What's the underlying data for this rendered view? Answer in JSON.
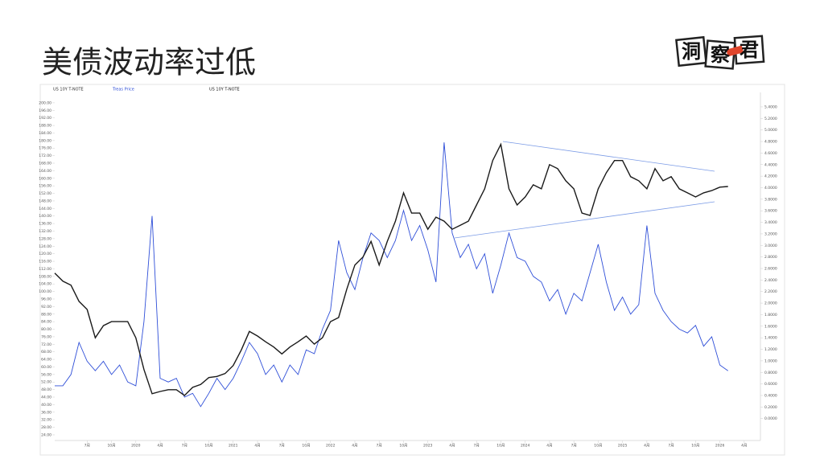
{
  "chart_data": {
    "type": "line",
    "title": "美债波动率过低",
    "subtitle": "US 10Y T-NOTE",
    "x": [
      "2019-03",
      "2019-04",
      "2019-05",
      "2019-06",
      "2019-07",
      "2019-08",
      "2019-09",
      "2019-10",
      "2019-11",
      "2019-12",
      "2020-01",
      "2020-02",
      "2020-03",
      "2020-04",
      "2020-05",
      "2020-06",
      "2020-07",
      "2020-08",
      "2020-09",
      "2020-10",
      "2020-11",
      "2020-12",
      "2021-01",
      "2021-02",
      "2021-03",
      "2021-04",
      "2021-05",
      "2021-06",
      "2021-07",
      "2021-08",
      "2021-09",
      "2021-10",
      "2021-11",
      "2021-12",
      "2022-01",
      "2022-02",
      "2022-03",
      "2022-04",
      "2022-05",
      "2022-06",
      "2022-07",
      "2022-08",
      "2022-09",
      "2022-10",
      "2022-11",
      "2022-12",
      "2023-01",
      "2023-02",
      "2023-03",
      "2023-04",
      "2023-05",
      "2023-06",
      "2023-07",
      "2023-08",
      "2023-09",
      "2023-10",
      "2023-11",
      "2023-12",
      "2024-01",
      "2024-02",
      "2024-03",
      "2024-04",
      "2024-05",
      "2024-06",
      "2024-07",
      "2024-08",
      "2024-09",
      "2024-10",
      "2024-11",
      "2024-12",
      "2025-01",
      "2025-02",
      "2025-03",
      "2025-04",
      "2025-05",
      "2025-06",
      "2025-07",
      "2025-08",
      "2025-09",
      "2025-10",
      "2025-11",
      "2025-12",
      "2026-01",
      "2026-02"
    ],
    "xlim": [
      "2019-03",
      "2026-06"
    ],
    "xticks": [
      {
        "value": "2019-07",
        "label": "7月"
      },
      {
        "value": "2019-10",
        "label": "10月"
      },
      {
        "value": "2020-01",
        "label": "2020"
      },
      {
        "value": "2020-04",
        "label": "4月"
      },
      {
        "value": "2020-07",
        "label": "7月"
      },
      {
        "value": "2020-10",
        "label": "10月"
      },
      {
        "value": "2021-01",
        "label": "2021"
      },
      {
        "value": "2021-04",
        "label": "4月"
      },
      {
        "value": "2021-07",
        "label": "7月"
      },
      {
        "value": "2021-10",
        "label": "10月"
      },
      {
        "value": "2022-01",
        "label": "2022"
      },
      {
        "value": "2022-04",
        "label": "4月"
      },
      {
        "value": "2022-07",
        "label": "7月"
      },
      {
        "value": "2022-10",
        "label": "10月"
      },
      {
        "value": "2023-01",
        "label": "2023"
      },
      {
        "value": "2023-04",
        "label": "4月"
      },
      {
        "value": "2023-07",
        "label": "7月"
      },
      {
        "value": "2023-10",
        "label": "10月"
      },
      {
        "value": "2024-01",
        "label": "2024"
      },
      {
        "value": "2024-04",
        "label": "4月"
      },
      {
        "value": "2024-07",
        "label": "7月"
      },
      {
        "value": "2024-10",
        "label": "10月"
      },
      {
        "value": "2025-01",
        "label": "2025"
      },
      {
        "value": "2025-04",
        "label": "4月"
      },
      {
        "value": "2025-07",
        "label": "7月"
      },
      {
        "value": "2025-10",
        "label": "10月"
      },
      {
        "value": "2026-01",
        "label": "2026"
      },
      {
        "value": "2026-04",
        "label": "4月"
      }
    ],
    "series": [
      {
        "name": "Treas Price",
        "color": "#2f4fd8",
        "values": [
          50,
          50,
          56,
          73,
          63,
          58,
          63,
          56,
          61,
          52,
          50,
          84,
          140,
          54,
          52,
          54,
          44,
          46,
          39,
          46,
          54,
          48,
          54,
          63,
          73,
          67,
          56,
          61,
          52,
          61,
          56,
          69,
          67,
          80,
          90,
          127,
          110,
          101,
          118,
          131,
          127,
          118,
          127,
          143,
          127,
          135,
          122,
          105,
          179,
          131,
          118,
          125,
          112,
          120,
          99,
          114,
          131,
          118,
          116,
          108,
          105,
          95,
          101,
          88,
          99,
          95,
          110,
          125,
          105,
          90,
          97,
          88,
          93,
          135,
          99,
          90,
          84,
          80,
          78,
          82,
          71,
          76,
          61,
          58
        ]
      },
      {
        "name": "US 10Y T-NOTE",
        "color": "#1a1a1a",
        "axis": "y2",
        "values": [
          2.52,
          2.38,
          2.31,
          2.03,
          1.89,
          1.4,
          1.61,
          1.68,
          1.68,
          1.68,
          1.4,
          0.85,
          0.43,
          0.47,
          0.5,
          0.5,
          0.4,
          0.54,
          0.59,
          0.71,
          0.73,
          0.78,
          0.92,
          1.19,
          1.51,
          1.43,
          1.33,
          1.24,
          1.12,
          1.24,
          1.33,
          1.43,
          1.29,
          1.4,
          1.68,
          1.75,
          2.24,
          2.66,
          2.8,
          3.07,
          2.66,
          3.07,
          3.42,
          3.91,
          3.56,
          3.56,
          3.28,
          3.49,
          3.42,
          3.28,
          3.35,
          3.42,
          3.7,
          3.98,
          4.47,
          4.75,
          3.98,
          3.7,
          3.84,
          4.05,
          3.98,
          4.4,
          4.33,
          4.12,
          3.98,
          3.56,
          3.52,
          3.98,
          4.26,
          4.47,
          4.47,
          4.19,
          4.12,
          3.98,
          4.33,
          4.12,
          4.19,
          3.98,
          3.91,
          3.84,
          3.91,
          3.95,
          4.01,
          4.02
        ]
      }
    ],
    "ylim": [
      21,
      205.5
    ],
    "yticks": [
      {
        "value": 24,
        "label": "24.00"
      },
      {
        "value": 28,
        "label": "28.00"
      },
      {
        "value": 32,
        "label": "32.00"
      },
      {
        "value": 36,
        "label": "36.00"
      },
      {
        "value": 40,
        "label": "40.00"
      },
      {
        "value": 44,
        "label": "44.00"
      },
      {
        "value": 48,
        "label": "48.00"
      },
      {
        "value": 52,
        "label": "52.00"
      },
      {
        "value": 56,
        "label": "56.00"
      },
      {
        "value": 60,
        "label": "60.00"
      },
      {
        "value": 64,
        "label": "64.00"
      },
      {
        "value": 68,
        "label": "68.00"
      },
      {
        "value": 72,
        "label": "72.00"
      },
      {
        "value": 76,
        "label": "76.00"
      },
      {
        "value": 80,
        "label": "80.00"
      },
      {
        "value": 84,
        "label": "84.00"
      },
      {
        "value": 88,
        "label": "88.00"
      },
      {
        "value": 92,
        "label": "92.00"
      },
      {
        "value": 96,
        "label": "96.00"
      },
      {
        "value": 100,
        "label": "100.00"
      },
      {
        "value": 104,
        "label": "104.00"
      },
      {
        "value": 108,
        "label": "108.00"
      },
      {
        "value": 112,
        "label": "112.00"
      },
      {
        "value": 116,
        "label": "116.00"
      },
      {
        "value": 120,
        "label": "120.00"
      },
      {
        "value": 124,
        "label": "124.00"
      },
      {
        "value": 128,
        "label": "128.00"
      },
      {
        "value": 132,
        "label": "132.00"
      },
      {
        "value": 136,
        "label": "136.00"
      },
      {
        "value": 140,
        "label": "140.00"
      },
      {
        "value": 144,
        "label": "144.00"
      },
      {
        "value": 148,
        "label": "148.00"
      },
      {
        "value": 152,
        "label": "152.00"
      },
      {
        "value": 156,
        "label": "156.00"
      },
      {
        "value": 160,
        "label": "160.00"
      },
      {
        "value": 164,
        "label": "164.00"
      },
      {
        "value": 168,
        "label": "168.00"
      },
      {
        "value": 172,
        "label": "172.00"
      },
      {
        "value": 176,
        "label": "176.00"
      },
      {
        "value": 180,
        "label": "180.00"
      },
      {
        "value": 184,
        "label": "184.00"
      },
      {
        "value": 188,
        "label": "188.00"
      },
      {
        "value": 192,
        "label": "192.00"
      },
      {
        "value": 196,
        "label": "196.00"
      },
      {
        "value": 200,
        "label": "200.00"
      }
    ],
    "y2lim": [
      -0.38,
      5.65
    ],
    "y2ticks": [
      {
        "value": 0,
        "label": "0.0000"
      },
      {
        "value": 0.2,
        "label": "0.2000"
      },
      {
        "value": 0.4,
        "label": "0.4000"
      },
      {
        "value": 0.6,
        "label": "0.6000"
      },
      {
        "value": 0.8,
        "label": "0.8000"
      },
      {
        "value": 1,
        "label": "1.0000"
      },
      {
        "value": 1.2,
        "label": "1.2000"
      },
      {
        "value": 1.4,
        "label": "1.4000"
      },
      {
        "value": 1.6,
        "label": "1.6000"
      },
      {
        "value": 1.8,
        "label": "1.8000"
      },
      {
        "value": 2,
        "label": "2.0000"
      },
      {
        "value": 2.2,
        "label": "2.2000"
      },
      {
        "value": 2.4,
        "label": "2.4000"
      },
      {
        "value": 2.6,
        "label": "2.6000"
      },
      {
        "value": 2.8,
        "label": "2.8000"
      },
      {
        "value": 3,
        "label": "3.0000"
      },
      {
        "value": 3.2,
        "label": "3.2000"
      },
      {
        "value": 3.4,
        "label": "3.4000"
      },
      {
        "value": 3.6,
        "label": "3.6000"
      },
      {
        "value": 3.8,
        "label": "3.8000"
      },
      {
        "value": 4,
        "label": "4.0000"
      },
      {
        "value": 4.2,
        "label": "4.2000"
      },
      {
        "value": 4.4,
        "label": "4.4000"
      },
      {
        "value": 4.6,
        "label": "4.6000"
      },
      {
        "value": 4.8,
        "label": "4.8000"
      },
      {
        "value": 5,
        "label": "5.0000"
      },
      {
        "value": 5.2,
        "label": "5.2000"
      },
      {
        "value": 5.4,
        "label": "5.4000"
      }
    ],
    "grid": false
  },
  "logo": {
    "chars": [
      "洞",
      "察",
      "君"
    ]
  }
}
